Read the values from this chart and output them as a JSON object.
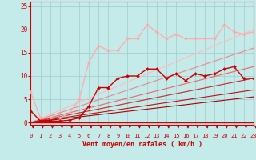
{
  "xlabel": "Vent moyen/en rafales ( km/h )",
  "xlim": [
    0,
    23
  ],
  "ylim": [
    -0.5,
    26
  ],
  "xticks": [
    0,
    1,
    2,
    3,
    4,
    5,
    6,
    7,
    8,
    9,
    10,
    11,
    12,
    13,
    14,
    15,
    16,
    17,
    18,
    19,
    20,
    21,
    22,
    23
  ],
  "yticks": [
    0,
    5,
    10,
    15,
    20,
    25
  ],
  "bg_color": "#c5eaea",
  "grid_color": "#a0cccc",
  "series": [
    {
      "x": [
        0,
        1,
        2,
        3,
        4,
        5,
        6,
        7,
        8,
        9,
        10,
        11,
        12,
        13,
        14,
        15,
        16,
        17,
        18,
        19,
        20,
        21,
        22,
        23
      ],
      "y": [
        6.5,
        1.0,
        1.0,
        1.0,
        2.0,
        5.0,
        13.0,
        16.5,
        15.5,
        15.5,
        18.0,
        18.0,
        21.0,
        19.5,
        18.0,
        19.0,
        18.0,
        18.0,
        18.0,
        18.0,
        21.0,
        19.5,
        19.0,
        19.5
      ],
      "color": "#ffaaaa",
      "lw": 0.9,
      "marker": "D",
      "ms": 2.0,
      "zorder": 4
    },
    {
      "x": [
        0,
        1,
        2,
        3,
        4,
        5,
        6,
        7,
        8,
        9,
        10,
        11,
        12,
        13,
        14,
        15,
        16,
        17,
        18,
        19,
        20,
        21,
        22,
        23
      ],
      "y": [
        2.5,
        0.3,
        0.3,
        0.3,
        0.5,
        1.0,
        3.5,
        7.5,
        7.5,
        9.5,
        10.0,
        10.0,
        11.5,
        11.5,
        9.5,
        10.5,
        9.0,
        10.5,
        10.0,
        10.5,
        11.5,
        12.0,
        9.5,
        9.5
      ],
      "color": "#cc0000",
      "lw": 1.0,
      "marker": "D",
      "ms": 2.0,
      "zorder": 5
    },
    {
      "x": [
        0,
        23
      ],
      "y": [
        0,
        20.0
      ],
      "color": "#ffbbbb",
      "lw": 0.8,
      "marker": null,
      "ms": 0,
      "zorder": 2
    },
    {
      "x": [
        0,
        23
      ],
      "y": [
        0,
        16.0
      ],
      "color": "#ee8888",
      "lw": 0.8,
      "marker": null,
      "ms": 0,
      "zorder": 2
    },
    {
      "x": [
        0,
        23
      ],
      "y": [
        0,
        12.0
      ],
      "color": "#ee6666",
      "lw": 0.8,
      "marker": null,
      "ms": 0,
      "zorder": 2
    },
    {
      "x": [
        0,
        23
      ],
      "y": [
        0,
        9.5
      ],
      "color": "#cc2222",
      "lw": 0.8,
      "marker": null,
      "ms": 0,
      "zorder": 2
    },
    {
      "x": [
        0,
        23
      ],
      "y": [
        0,
        7.0
      ],
      "color": "#bb1111",
      "lw": 0.8,
      "marker": null,
      "ms": 0,
      "zorder": 2
    },
    {
      "x": [
        0,
        23
      ],
      "y": [
        0,
        5.5
      ],
      "color": "#aa0000",
      "lw": 0.8,
      "marker": null,
      "ms": 0,
      "zorder": 2
    }
  ],
  "arrow_color": "#cc0000",
  "hline_color": "#cc0000"
}
